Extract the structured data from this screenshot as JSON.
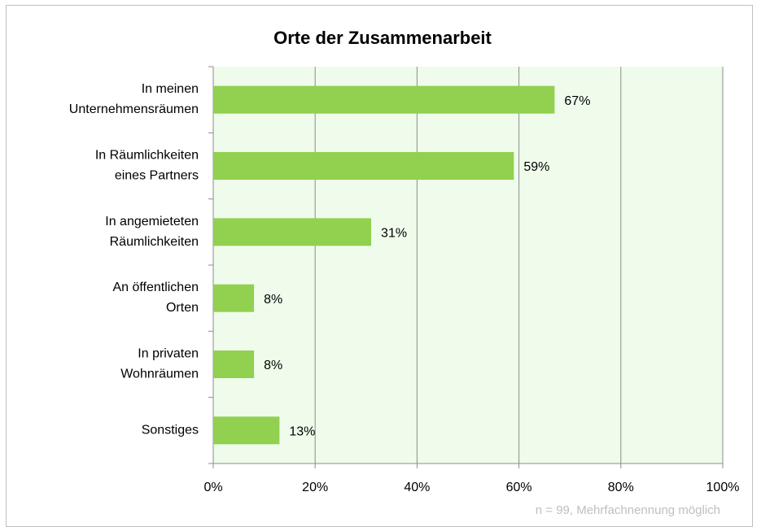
{
  "chart_data": {
    "type": "bar",
    "orientation": "horizontal",
    "title": "Orte der Zusammenarbeit",
    "categories": [
      "In meinen\nUnternehmensräumen",
      "In Räumlichkeiten\neines Partners",
      "In angemieteten\nRäumlichkeiten",
      "An öffentlichen\nOrten",
      "In privaten\nWohnräumen",
      "Sonstiges"
    ],
    "values": [
      67,
      59,
      31,
      8,
      8,
      13
    ],
    "value_labels": [
      "67%",
      "59%",
      "31%",
      "8%",
      "8%",
      "13%"
    ],
    "color": "#92d050",
    "xlim": [
      0,
      100
    ],
    "xticks": [
      {
        "value": 0,
        "label": "0%"
      },
      {
        "value": 20,
        "label": "20%"
      },
      {
        "value": 40,
        "label": "40%"
      },
      {
        "value": 60,
        "label": "60%"
      },
      {
        "value": 80,
        "label": "80%"
      },
      {
        "value": 100,
        "label": "100%"
      }
    ],
    "grid": true,
    "annotation": "n = 99, Mehrfachnennung möglich"
  }
}
